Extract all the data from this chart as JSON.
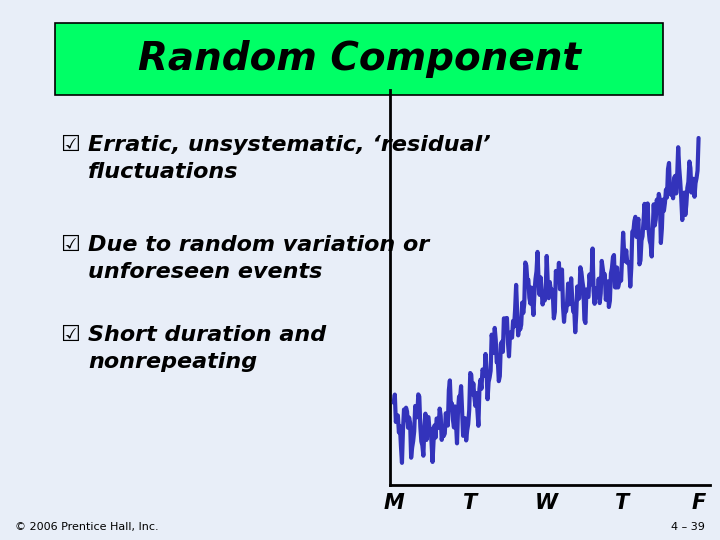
{
  "title": "Random Component",
  "title_bg_color": "#00FF66",
  "title_fontsize": 28,
  "slide_bg_color": "#E8EEF8",
  "bullet_symbol": "☑",
  "bullets": [
    "Erratic, unsystematic, ‘residual’\nfluctuations",
    "Due to random variation or\nunforeseen events",
    "Short duration and\nnonrepeating"
  ],
  "bullet_fontsize": 16,
  "chart_x_labels": [
    "M",
    "T",
    "W",
    "T",
    "F"
  ],
  "line_color": "#3333BB",
  "footer_left": "© 2006 Prentice Hall, Inc.",
  "footer_right": "4 – 39"
}
